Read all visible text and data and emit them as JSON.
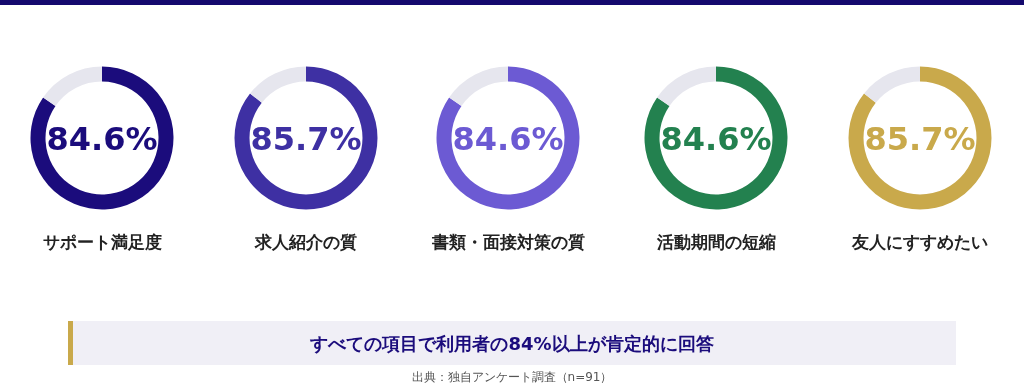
{
  "chart_data": [
    {
      "type": "donut",
      "title": "サポート満足度",
      "categories": [
        null,
        null
      ],
      "values": [
        84.6,
        15.4
      ],
      "colors": [
        "#1b0c7c",
        "#e6e6ee"
      ],
      "value_labels": [
        "84.6%",
        null
      ]
    },
    {
      "type": "donut",
      "title": "求人紹介の質",
      "categories": [
        null,
        null
      ],
      "values": [
        85.7,
        14.3
      ],
      "colors": [
        "#3e30a3",
        "#e6e6ee"
      ],
      "value_labels": [
        "85.7%",
        null
      ]
    },
    {
      "type": "donut",
      "title": "書類・面接対策の質",
      "categories": [
        null,
        null
      ],
      "values": [
        84.6,
        15.4
      ],
      "colors": [
        "#6c5ad3",
        "#e6e6ee"
      ],
      "value_labels": [
        "84.6%",
        null
      ]
    },
    {
      "type": "donut",
      "title": "活動期間の短縮",
      "categories": [
        null,
        null
      ],
      "values": [
        84.6,
        15.4
      ],
      "colors": [
        "#23814f",
        "#e6e6ee"
      ],
      "value_labels": [
        "84.6%",
        null
      ]
    },
    {
      "type": "donut",
      "title": "友人にすすめたい",
      "categories": [
        null,
        null
      ],
      "values": [
        85.7,
        14.3
      ],
      "colors": [
        "#c9a94b",
        "#e6e6ee"
      ],
      "value_labels": [
        "85.7%",
        null
      ]
    },
    {
      "type": "other",
      "annotations": [
        "すべての項目で利用者の84%以上が肯定的に回答",
        "出典：独自アンケート調査（n=91）"
      ]
    }
  ]
}
